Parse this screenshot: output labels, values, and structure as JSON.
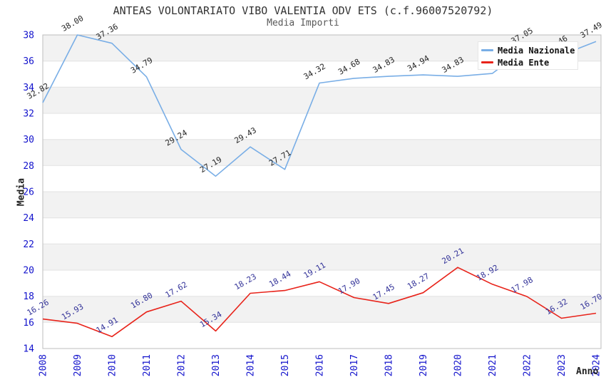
{
  "colors": {
    "background": "#ffffff",
    "stripe": "#f2f2f2",
    "grid": "#e2e2e2",
    "border": "#bdbdbd",
    "axis_tick": "#1212cc",
    "title": "#333333",
    "subtitle": "#595959"
  },
  "chart_data": {
    "type": "line",
    "title": "ANTEAS VOLONTARIATO VIBO VALENTIA ODV ETS (c.f.96007520792)",
    "subtitle": "Media Importi",
    "xlabel": "Anno",
    "ylabel": "Media",
    "x": [
      2008,
      2009,
      2010,
      2011,
      2012,
      2013,
      2014,
      2015,
      2016,
      2017,
      2018,
      2019,
      2020,
      2021,
      2022,
      2023,
      2024
    ],
    "ylim": [
      14,
      38
    ],
    "yticks": [
      14,
      16,
      18,
      20,
      22,
      24,
      26,
      28,
      30,
      32,
      34,
      36,
      38
    ],
    "grid": "horizontal-stripes-every-2-units",
    "legend_position": "top-right",
    "series": [
      {
        "name": "Media Nazionale",
        "color": "#79aee6",
        "label_color": "#262626",
        "values": [
          32.82,
          38.0,
          37.36,
          34.79,
          29.24,
          27.19,
          29.43,
          27.71,
          34.32,
          34.68,
          34.83,
          34.94,
          34.83,
          35.05,
          37.05,
          36.46,
          37.49
        ],
        "labels": [
          "32.82",
          "38.00",
          "37.36",
          "34.79",
          "29.24",
          "27.19",
          "29.43",
          "27.71",
          "34.32",
          "34.68",
          "34.83",
          "34.94",
          "34.83",
          "",
          "37.05",
          "36.46",
          "37.49"
        ]
      },
      {
        "name": "Media Ente",
        "color": "#e8231a",
        "label_color": "#333399",
        "values": [
          16.26,
          15.93,
          14.91,
          16.8,
          17.62,
          15.34,
          18.23,
          18.44,
          19.11,
          17.9,
          17.45,
          18.27,
          20.21,
          18.92,
          17.98,
          16.32,
          16.7
        ],
        "labels": [
          "16.26",
          "15.93",
          "14.91",
          "16.80",
          "17.62",
          "15.34",
          "18.23",
          "18.44",
          "19.11",
          "17.90",
          "17.45",
          "18.27",
          "20.21",
          "18.92",
          "17.98",
          "16.32",
          "16.70"
        ]
      }
    ]
  }
}
